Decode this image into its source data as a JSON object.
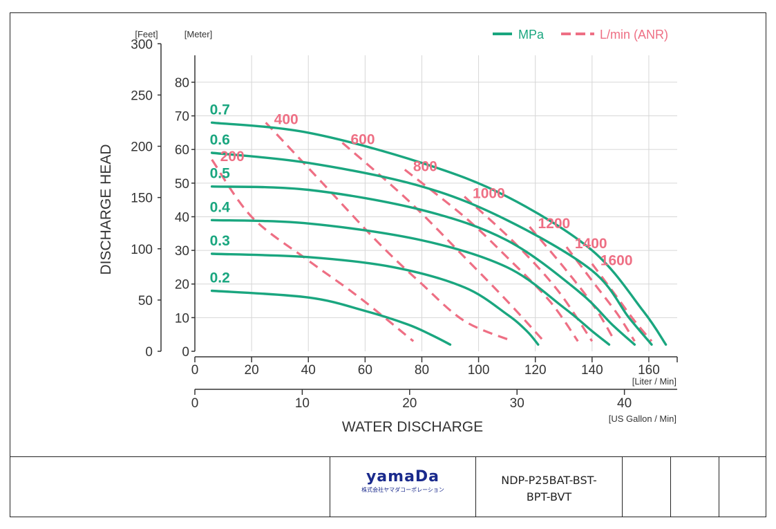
{
  "chart_data": {
    "type": "line",
    "legend": {
      "placement": "top-right",
      "pressure_label": "MPa",
      "air_label": "L/min (ANR)"
    },
    "colors": {
      "pressure": "#1aa67f",
      "air": "#ee6f84",
      "grid": "#d6d6d6"
    },
    "ylabel": "DISCHARGE HEAD",
    "xlabel": "WATER DISCHARGE",
    "y_feet_unit": "[Feet]",
    "y_meter_unit": "[Meter]",
    "x_liter_unit": "[Liter / Min]",
    "x_gallon_unit": "[US Gallon / Min]",
    "x_liter_range": [
      0,
      170
    ],
    "y_meter_range": [
      0,
      88
    ],
    "y_meter_ticks": [
      0,
      10,
      20,
      30,
      40,
      50,
      60,
      70,
      80
    ],
    "y_feet_ticks": [
      0,
      50,
      100,
      150,
      200,
      250,
      300
    ],
    "x_liter_ticks": [
      0,
      20,
      40,
      60,
      80,
      100,
      120,
      140,
      160
    ],
    "x_gallon_ticks": [
      0,
      10,
      20,
      30,
      40
    ],
    "pressure_series": [
      {
        "name": "0.7",
        "x": [
          6,
          40,
          80,
          110,
          140,
          158,
          166
        ],
        "y": [
          68,
          65,
          56,
          46,
          30,
          12,
          2
        ]
      },
      {
        "name": "0.6",
        "x": [
          6,
          40,
          80,
          110,
          140,
          153,
          161
        ],
        "y": [
          59,
          56,
          49,
          39,
          24,
          10,
          2
        ]
      },
      {
        "name": "0.5",
        "x": [
          6,
          40,
          80,
          110,
          135,
          147,
          155
        ],
        "y": [
          49,
          48,
          42,
          33,
          18,
          8,
          2
        ]
      },
      {
        "name": "0.4",
        "x": [
          6,
          40,
          80,
          110,
          130,
          140,
          146
        ],
        "y": [
          39,
          38,
          33,
          25,
          13,
          6,
          2
        ]
      },
      {
        "name": "0.3",
        "x": [
          6,
          40,
          70,
          95,
          110,
          117,
          121
        ],
        "y": [
          29,
          28,
          25,
          19,
          11,
          6,
          2
        ]
      },
      {
        "name": "0.2",
        "x": [
          6,
          40,
          60,
          75,
          83,
          90
        ],
        "y": [
          18,
          16,
          12,
          8,
          5,
          2
        ]
      }
    ],
    "air_series": [
      {
        "name": "200",
        "x": [
          6,
          20,
          40,
          58,
          77
        ],
        "y": [
          57,
          40,
          27,
          16,
          3
        ]
      },
      {
        "name": "400",
        "x": [
          25,
          45,
          65,
          80,
          95,
          112
        ],
        "y": [
          68,
          50,
          32,
          20,
          9,
          3
        ]
      },
      {
        "name": "600",
        "x": [
          52,
          75,
          95,
          110,
          123
        ],
        "y": [
          62,
          45,
          28,
          15,
          3
        ]
      },
      {
        "name": "800",
        "x": [
          74,
          95,
          110,
          125,
          135
        ],
        "y": [
          54,
          40,
          28,
          15,
          3
        ]
      },
      {
        "name": "1000",
        "x": [
          95,
          113,
          128,
          140
        ],
        "y": [
          46,
          32,
          18,
          3
        ]
      },
      {
        "name": "1200",
        "x": [
          118,
          130,
          141,
          148
        ],
        "y": [
          37,
          25,
          13,
          3
        ]
      },
      {
        "name": "1400",
        "x": [
          131,
          140,
          149,
          155
        ],
        "y": [
          31,
          21,
          11,
          3
        ]
      },
      {
        "name": "1600",
        "x": [
          140,
          148,
          155,
          161
        ],
        "y": [
          26,
          17,
          9,
          3
        ]
      }
    ]
  },
  "title_block": {
    "logo_text": "yamaDa",
    "logo_subtext": "株式会社ヤマダコーポレーション",
    "model_line1": "NDP-P25BAT-BST-",
    "model_line2": "BPT-BVT"
  }
}
